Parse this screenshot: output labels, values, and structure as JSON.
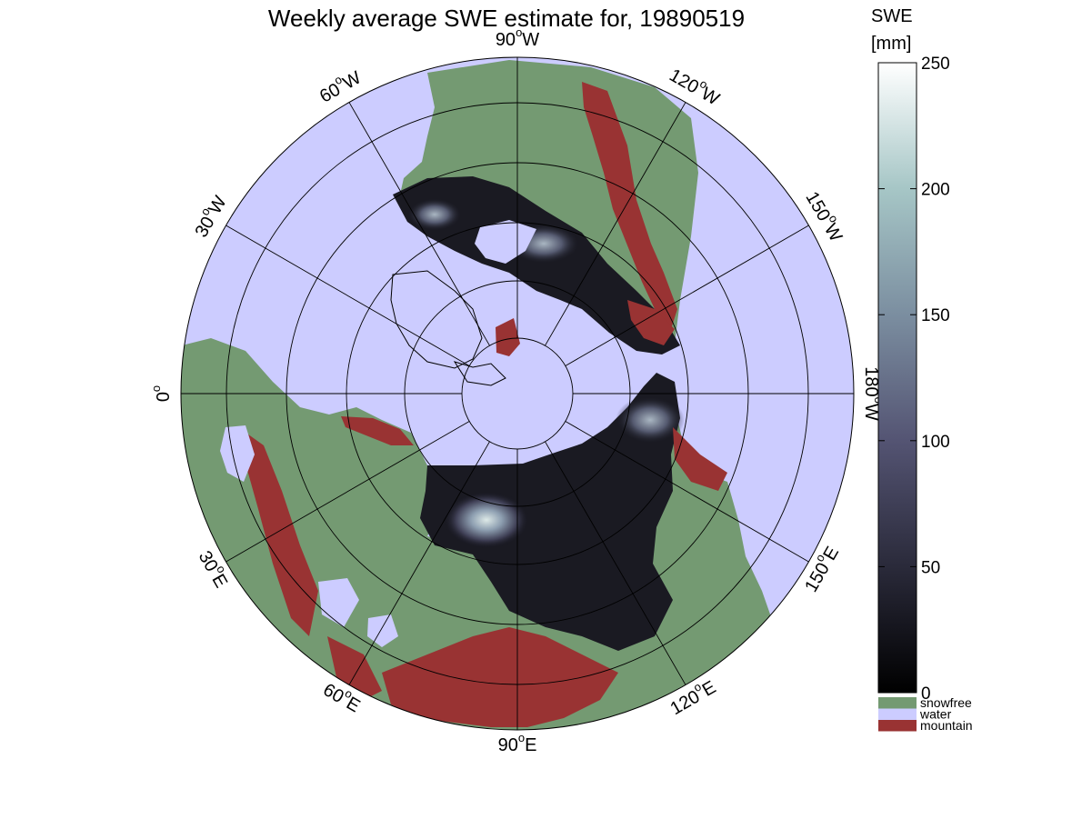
{
  "title": "Weekly average SWE estimate for, 19890519",
  "map": {
    "projection": "north-polar-stereographic",
    "longitude_labels": [
      {
        "lon": 90,
        "hemi": "W",
        "text": "90",
        "suffix": "W"
      },
      {
        "lon": 120,
        "hemi": "W",
        "text": "120",
        "suffix": "W"
      },
      {
        "lon": 150,
        "hemi": "W",
        "text": "150",
        "suffix": "W"
      },
      {
        "lon": 180,
        "hemi": "W",
        "text": "180",
        "suffix": "W"
      },
      {
        "lon": 150,
        "hemi": "E",
        "text": "150",
        "suffix": "E"
      },
      {
        "lon": 120,
        "hemi": "E",
        "text": "120",
        "suffix": "E"
      },
      {
        "lon": 90,
        "hemi": "E",
        "text": "90",
        "suffix": "E"
      },
      {
        "lon": 60,
        "hemi": "E",
        "text": "60",
        "suffix": "E"
      },
      {
        "lon": 30,
        "hemi": "E",
        "text": "30",
        "suffix": "E"
      },
      {
        "lon": 0,
        "hemi": "",
        "text": "0",
        "suffix": ""
      },
      {
        "lon": 30,
        "hemi": "W",
        "text": "30",
        "suffix": "W"
      },
      {
        "lon": 60,
        "hemi": "W",
        "text": "60",
        "suffix": "W"
      }
    ],
    "degree_symbol": "o",
    "colors": {
      "water": "#ccccff",
      "snowfree": "#749a72",
      "mountain": "#993333",
      "frame": "#000000"
    }
  },
  "colorbar": {
    "title_line1": "SWE",
    "title_line2": "[mm]",
    "min": 0,
    "max": 250,
    "ticks": [
      {
        "value": 0,
        "label": "0"
      },
      {
        "value": 50,
        "label": "50"
      },
      {
        "value": 100,
        "label": "100"
      },
      {
        "value": 150,
        "label": "150"
      },
      {
        "value": 200,
        "label": "200"
      },
      {
        "value": 250,
        "label": "250"
      }
    ],
    "colormap": "bone",
    "colormap_stops": [
      "#000000",
      "#2a2a3a",
      "#545473",
      "#7b8ea0",
      "#a6c6c6",
      "#ffffff"
    ]
  },
  "legend": [
    {
      "key": "snowfree",
      "label": "snowfree",
      "color": "#749a72"
    },
    {
      "key": "water",
      "label": "water",
      "color": "#ccccff"
    },
    {
      "key": "mountain",
      "label": "mountain",
      "color": "#993333"
    }
  ]
}
